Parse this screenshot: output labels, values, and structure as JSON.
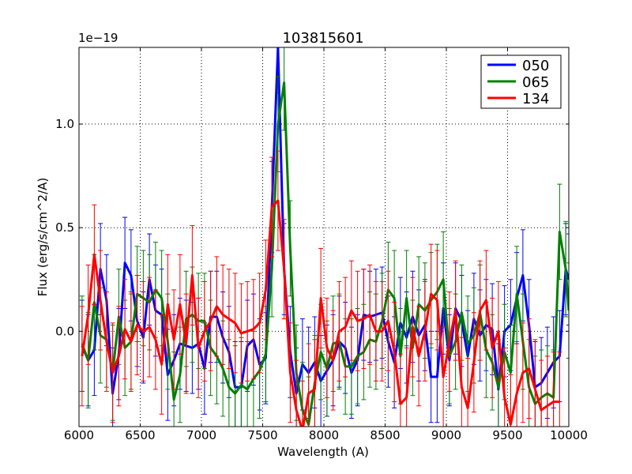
{
  "chart_data": {
    "type": "line",
    "title": "103815601",
    "xlabel": "Wavelength (A)",
    "ylabel": "Flux (erg/s/cm^2/A)",
    "offset_text": "1e−19",
    "xlim": [
      6000,
      10000
    ],
    "ylim": [
      -0.46,
      1.37
    ],
    "xticks": [
      6000,
      6500,
      7000,
      7500,
      8000,
      8500,
      9000,
      9500,
      10000
    ],
    "yticks": [
      0.0,
      0.5,
      1.0
    ],
    "ytick_labels": [
      "0.0",
      "0.5",
      "1.0"
    ],
    "grid": true,
    "legend_position": "top-right",
    "series": [
      {
        "name": "050",
        "color": "#0000ff",
        "error": 0.22,
        "x": [
          6025,
          6075,
          6125,
          6175,
          6225,
          6275,
          6325,
          6375,
          6425,
          6475,
          6525,
          6575,
          6625,
          6675,
          6725,
          6775,
          6825,
          6875,
          6925,
          6975,
          7025,
          7075,
          7125,
          7175,
          7225,
          7275,
          7325,
          7375,
          7425,
          7475,
          7525,
          7575,
          7625,
          7675,
          7725,
          7775,
          7825,
          7875,
          7925,
          7975,
          8025,
          8075,
          8125,
          8175,
          8225,
          8275,
          8325,
          8375,
          8425,
          8475,
          8525,
          8575,
          8625,
          8675,
          8725,
          8775,
          8825,
          8875,
          8925,
          8975,
          9025,
          9075,
          9125,
          9175,
          9225,
          9275,
          9325,
          9375,
          9425,
          9475,
          9525,
          9575,
          9625,
          9675,
          9725,
          9775,
          9825,
          9875,
          9925,
          9975,
          10000
        ],
        "y": [
          -0.07,
          -0.14,
          -0.09,
          0.3,
          0.15,
          -0.3,
          -0.11,
          0.33,
          0.27,
          0.05,
          -0.03,
          0.25,
          0.1,
          0.08,
          -0.21,
          -0.14,
          -0.06,
          -0.07,
          -0.08,
          -0.06,
          -0.18,
          0.07,
          0.07,
          -0.03,
          -0.1,
          -0.27,
          -0.27,
          -0.07,
          -0.04,
          -0.16,
          -0.13,
          0.6,
          1.37,
          0.3,
          -0.1,
          -0.3,
          -0.16,
          -0.2,
          -0.15,
          -0.24,
          -0.19,
          -0.14,
          -0.05,
          -0.08,
          -0.2,
          -0.14,
          0.08,
          0.07,
          0.08,
          0.09,
          -0.05,
          -0.15,
          0.04,
          -0.03,
          0.07,
          -0.02,
          0.03,
          -0.22,
          -0.22,
          0.11,
          -0.14,
          0.11,
          0.05,
          -0.12,
          0.06,
          -0.02,
          0.03,
          0.01,
          -0.28,
          0.0,
          0.03,
          0.16,
          0.27,
          0.03,
          -0.27,
          -0.25,
          -0.2,
          -0.15,
          -0.12,
          0.3,
          0.25
        ]
      },
      {
        "name": "065",
        "color": "#008000",
        "error": 0.23,
        "x": [
          6025,
          6075,
          6125,
          6175,
          6225,
          6275,
          6325,
          6375,
          6425,
          6475,
          6525,
          6575,
          6625,
          6675,
          6725,
          6775,
          6825,
          6875,
          6925,
          6975,
          7025,
          7075,
          7125,
          7175,
          7225,
          7275,
          7325,
          7375,
          7425,
          7475,
          7525,
          7575,
          7625,
          7675,
          7725,
          7775,
          7825,
          7875,
          7925,
          7975,
          8025,
          8075,
          8125,
          8175,
          8225,
          8275,
          8325,
          8375,
          8425,
          8475,
          8525,
          8575,
          8625,
          8675,
          8725,
          8775,
          8825,
          8875,
          8925,
          8975,
          9025,
          9075,
          9125,
          9175,
          9225,
          9275,
          9325,
          9375,
          9425,
          9475,
          9525,
          9575,
          9625,
          9675,
          9725,
          9775,
          9825,
          9875,
          9925,
          9975,
          10000
        ],
        "y": [
          -0.06,
          -0.14,
          0.14,
          -0.02,
          -0.04,
          -0.2,
          0.07,
          -0.08,
          -0.05,
          0.18,
          0.16,
          0.14,
          0.2,
          0.16,
          -0.05,
          -0.33,
          -0.21,
          0.06,
          0.08,
          0.05,
          0.05,
          -0.08,
          -0.12,
          -0.18,
          -0.27,
          -0.3,
          -0.26,
          -0.28,
          -0.23,
          -0.19,
          -0.11,
          0.3,
          1.0,
          1.2,
          0.4,
          -0.2,
          -0.38,
          -0.45,
          -0.25,
          -0.1,
          -0.18,
          -0.06,
          -0.05,
          -0.17,
          -0.17,
          -0.12,
          -0.1,
          -0.04,
          -0.05,
          0.05,
          0.2,
          0.16,
          -0.12,
          0.16,
          -0.08,
          0.13,
          0.1,
          0.15,
          0.19,
          0.25,
          -0.12,
          -0.05,
          0.09,
          -0.06,
          -0.02,
          0.09,
          -0.09,
          -0.15,
          -0.27,
          -0.1,
          -0.2,
          0.18,
          -0.05,
          -0.27,
          -0.35,
          -0.32,
          -0.3,
          -0.32,
          0.48,
          0.3,
          0.1
        ]
      },
      {
        "name": "134",
        "color": "#ff0000",
        "error": 0.24,
        "x": [
          6025,
          6075,
          6125,
          6175,
          6225,
          6275,
          6325,
          6375,
          6425,
          6475,
          6525,
          6575,
          6625,
          6675,
          6725,
          6775,
          6825,
          6875,
          6925,
          6975,
          7025,
          7075,
          7125,
          7175,
          7225,
          7275,
          7325,
          7375,
          7425,
          7475,
          7525,
          7575,
          7625,
          7675,
          7725,
          7775,
          7825,
          7875,
          7925,
          7975,
          8025,
          8075,
          8125,
          8175,
          8225,
          8275,
          8325,
          8375,
          8425,
          8475,
          8525,
          8575,
          8625,
          8675,
          8725,
          8775,
          8825,
          8875,
          8925,
          8975,
          9025,
          9075,
          9125,
          9175,
          9225,
          9275,
          9325,
          9375,
          9425,
          9475,
          9525,
          9575,
          9625,
          9675,
          9725,
          9775,
          9825,
          9875,
          9925
        ],
        "y": [
          -0.12,
          0.08,
          0.37,
          0.15,
          -0.05,
          -0.2,
          -0.12,
          0.01,
          -0.05,
          0.03,
          0.0,
          0.02,
          -0.04,
          -0.16,
          0.13,
          -0.04,
          0.13,
          -0.06,
          0.27,
          -0.08,
          0.0,
          0.05,
          0.12,
          0.08,
          0.06,
          0.04,
          -0.01,
          0.0,
          0.01,
          0.04,
          0.2,
          0.6,
          0.63,
          0.3,
          -0.2,
          -0.38,
          -0.48,
          -0.3,
          -0.28,
          0.16,
          -0.08,
          -0.14,
          0.0,
          0.02,
          0.1,
          0.05,
          0.06,
          0.08,
          0.0,
          0.0,
          0.05,
          -0.1,
          -0.35,
          -0.32,
          0.02,
          -0.12,
          0.0,
          0.18,
          0.15,
          -0.22,
          -0.05,
          0.1,
          -0.27,
          -0.37,
          -0.15,
          0.1,
          0.15,
          -0.08,
          0.0,
          -0.32,
          -0.45,
          -0.3,
          -0.2,
          -0.18,
          -0.28,
          -0.38,
          -0.36,
          -0.34,
          -0.34
        ]
      }
    ]
  }
}
